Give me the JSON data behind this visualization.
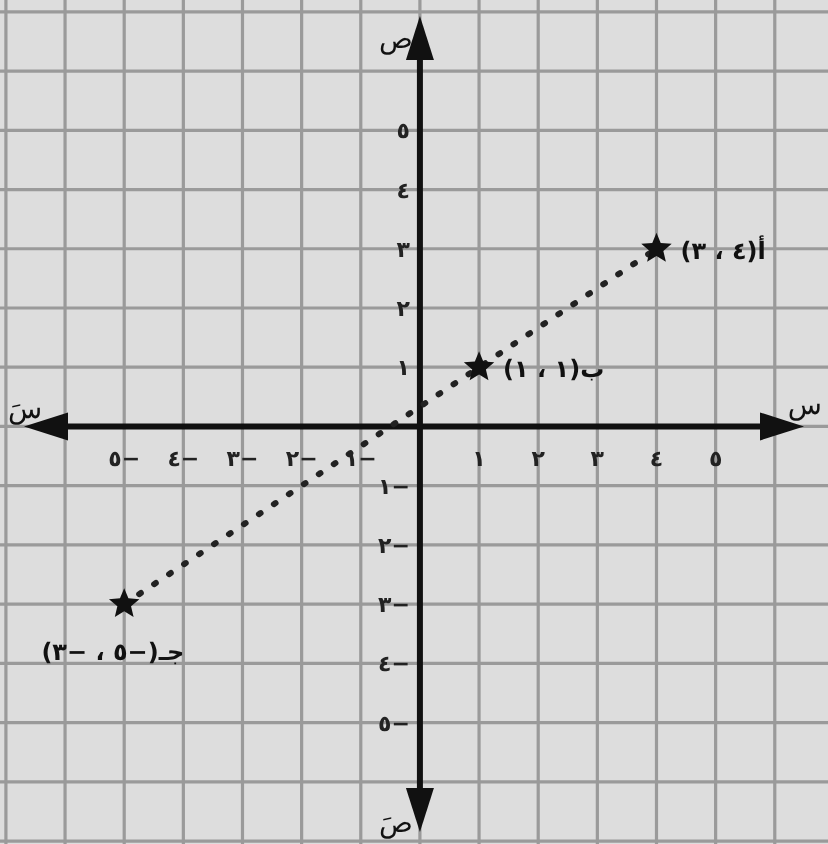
{
  "chart_data": {
    "type": "scatter",
    "xlabel": "س",
    "ylabel": "ص",
    "annotations": [
      "سَ",
      "صَ",
      {
        "text": "أ(٤ ، ٣)",
        "x": 4,
        "y": 3
      },
      {
        "text": "ب(١ ، ١)",
        "x": 1,
        "y": 1
      },
      {
        "text": "جـ(−٥ ، −٣)",
        "x": -5,
        "y": -3
      }
    ],
    "series": [
      {
        "type": "line",
        "color": "#222222",
        "line_style": "dotted",
        "marker": "none",
        "x": [
          -5,
          1,
          4
        ],
        "values": [
          -3,
          1,
          3
        ]
      },
      {
        "type": "scatter",
        "color": "#111111",
        "marker": "star",
        "x": [
          -5,
          1,
          4
        ],
        "values": [
          -3,
          1,
          3
        ]
      }
    ],
    "xlim": [
      -7.1,
      6.9
    ],
    "ylim": [
      -7.05,
      7.2
    ],
    "xticks": [
      {
        "value": -7,
        "label": null
      },
      {
        "value": -6,
        "label": null
      },
      {
        "value": -5,
        "label": "−٥"
      },
      {
        "value": -4,
        "label": "−٤"
      },
      {
        "value": -3,
        "label": "−٣"
      },
      {
        "value": -2,
        "label": "−٢"
      },
      {
        "value": -1,
        "label": "−١"
      },
      {
        "value": 0,
        "label": null
      },
      {
        "value": 1,
        "label": "١"
      },
      {
        "value": 2,
        "label": "٢"
      },
      {
        "value": 3,
        "label": "٣"
      },
      {
        "value": 4,
        "label": "٤"
      },
      {
        "value": 5,
        "label": "٥"
      },
      {
        "value": 6,
        "label": null
      }
    ],
    "yticks": [
      {
        "value": -7,
        "label": null
      },
      {
        "value": -6,
        "label": null
      },
      {
        "value": -5,
        "label": "−٥"
      },
      {
        "value": -4,
        "label": "−٤"
      },
      {
        "value": -3,
        "label": "−٣"
      },
      {
        "value": -2,
        "label": "−٢"
      },
      {
        "value": -1,
        "label": "−١"
      },
      {
        "value": 0,
        "label": null
      },
      {
        "value": 1,
        "label": "١"
      },
      {
        "value": 2,
        "label": "٢"
      },
      {
        "value": 3,
        "label": "٣"
      },
      {
        "value": 4,
        "label": "٤"
      },
      {
        "value": 5,
        "label": "٥"
      },
      {
        "value": 6,
        "label": null
      },
      {
        "value": 7,
        "label": null
      }
    ],
    "grid": true
  }
}
